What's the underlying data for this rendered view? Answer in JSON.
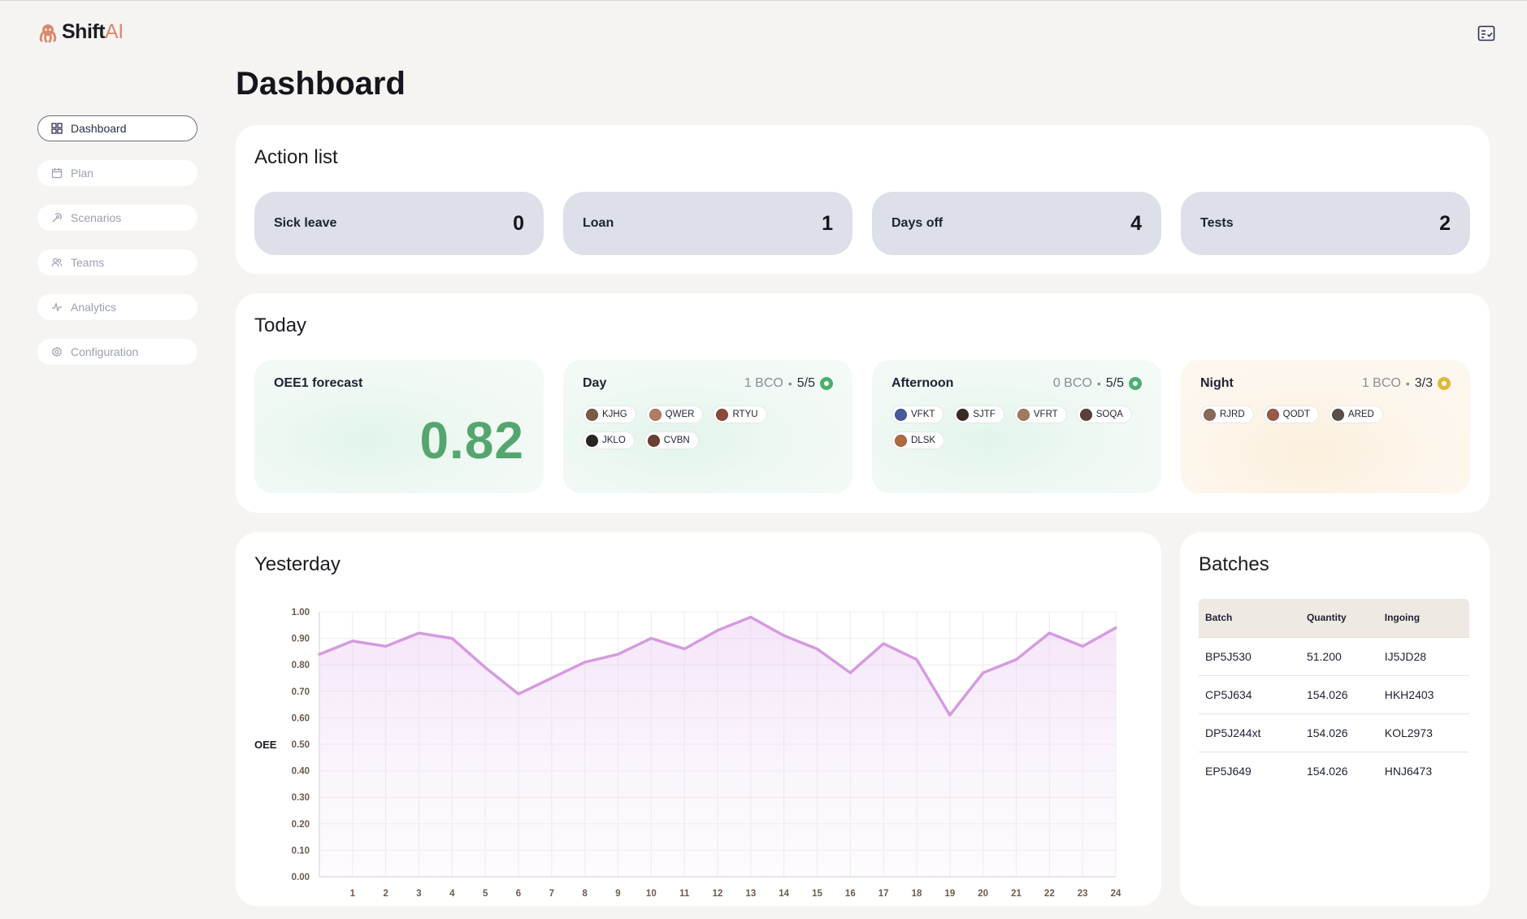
{
  "app": {
    "brand_primary": "Shift",
    "brand_secondary": "AI",
    "top_right_icon": "checklist-icon"
  },
  "sidebar": {
    "items": [
      {
        "label": "Dashboard",
        "icon": "grid-icon",
        "active": true
      },
      {
        "label": "Plan",
        "icon": "calendar-icon",
        "active": false
      },
      {
        "label": "Scenarios",
        "icon": "scenarios-icon",
        "active": false
      },
      {
        "label": "Teams",
        "icon": "users-icon",
        "active": false
      },
      {
        "label": "Analytics",
        "icon": "activity-icon",
        "active": false
      },
      {
        "label": "Configuration",
        "icon": "gear-icon",
        "active": false
      }
    ]
  },
  "page": {
    "title": "Dashboard"
  },
  "action_list": {
    "title": "Action list",
    "items": [
      {
        "label": "Sick leave",
        "value": "0"
      },
      {
        "label": "Loan",
        "value": "1"
      },
      {
        "label": "Days off",
        "value": "4"
      },
      {
        "label": "Tests",
        "value": "2"
      }
    ]
  },
  "today": {
    "title": "Today",
    "forecast": {
      "label": "OEE1 forecast",
      "value": "0.82"
    },
    "shifts": [
      {
        "name": "Day",
        "bco": "1 BCO",
        "ratio": "5/5",
        "status_color": "#4caf6e",
        "members": [
          {
            "code": "KJHG",
            "avatar_color": "#7a5a48"
          },
          {
            "code": "QWER",
            "avatar_color": "#b07d62"
          },
          {
            "code": "RTYU",
            "avatar_color": "#8a4a3a"
          },
          {
            "code": "JKLO",
            "avatar_color": "#2a2420"
          },
          {
            "code": "CVBN",
            "avatar_color": "#6a4030"
          }
        ]
      },
      {
        "name": "Afternoon",
        "bco": "0 BCO",
        "ratio": "5/5",
        "status_color": "#4caf6e",
        "members": [
          {
            "code": "VFKT",
            "avatar_color": "#4a5a9a"
          },
          {
            "code": "SJTF",
            "avatar_color": "#3a2a24"
          },
          {
            "code": "VFRT",
            "avatar_color": "#a07a60"
          },
          {
            "code": "SOQA",
            "avatar_color": "#5a4038"
          },
          {
            "code": "DLSK",
            "avatar_color": "#b06a40"
          }
        ]
      },
      {
        "name": "Night",
        "bco": "1 BCO",
        "ratio": "3/3",
        "status_color": "#e0b83a",
        "members": [
          {
            "code": "RJRD",
            "avatar_color": "#8a6a5a"
          },
          {
            "code": "QODT",
            "avatar_color": "#9a5a4a"
          },
          {
            "code": "ARED",
            "avatar_color": "#5a5048"
          }
        ]
      }
    ]
  },
  "yesterday": {
    "title": "Yesterday"
  },
  "chart_data": {
    "type": "area",
    "title": "",
    "xlabel": "",
    "ylabel": "OEE",
    "x": [
      0,
      1,
      2,
      3,
      4,
      5,
      6,
      7,
      8,
      9,
      10,
      11,
      12,
      13,
      14,
      15,
      16,
      17,
      18,
      19,
      20,
      21,
      22,
      23,
      24
    ],
    "x_tick_labels": [
      "1",
      "2",
      "3",
      "4",
      "5",
      "6",
      "7",
      "8",
      "9",
      "10",
      "11",
      "12",
      "13",
      "14",
      "15",
      "16",
      "17",
      "18",
      "19",
      "20",
      "21",
      "22",
      "23",
      "24"
    ],
    "y_tick_labels": [
      "0.00",
      "0.10",
      "0.20",
      "0.30",
      "0.40",
      "0.50",
      "0.60",
      "0.70",
      "0.80",
      "0.90",
      "1.00"
    ],
    "ylim": [
      0,
      1
    ],
    "grid": true,
    "series": [
      {
        "color": "#d59be0",
        "values": [
          0.84,
          0.89,
          0.87,
          0.92,
          0.9,
          0.79,
          0.69,
          0.75,
          0.81,
          0.84,
          0.9,
          0.86,
          0.93,
          0.98,
          0.91,
          0.86,
          0.77,
          0.88,
          0.82,
          0.61,
          0.77,
          0.82,
          0.92,
          0.87,
          0.94
        ]
      }
    ]
  },
  "batches": {
    "title": "Batches",
    "columns": [
      "Batch",
      "Quantity",
      "Ingoing"
    ],
    "rows": [
      [
        "BP5J530",
        "51.200",
        "IJ5JD28"
      ],
      [
        "CP5J634",
        "154.026",
        "HKH2403"
      ],
      [
        "DP5J244xt",
        "154.026",
        "KOL2973"
      ],
      [
        "EP5J649",
        "154.026",
        "HNJ6473"
      ]
    ]
  }
}
